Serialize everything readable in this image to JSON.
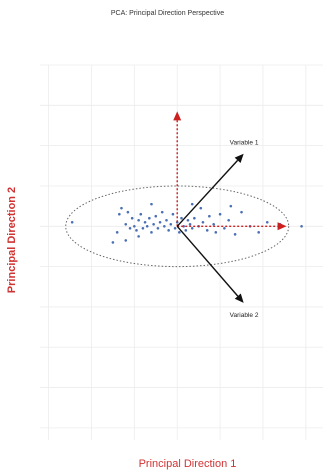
{
  "chart_data": {
    "type": "scatter",
    "title": "PCA: Principal Direction Perspective",
    "xlabel": "Principal Direction 1",
    "ylabel": "Principal Direction 2",
    "xlim": [
      -3.2,
      3.4
    ],
    "ylim": [
      -5.3,
      4.0
    ],
    "grid": true,
    "points": [
      {
        "x": -2.45,
        "y": 0.1
      },
      {
        "x": -1.5,
        "y": -0.4
      },
      {
        "x": -1.4,
        "y": -0.15
      },
      {
        "x": -1.35,
        "y": 0.3
      },
      {
        "x": -1.3,
        "y": 0.45
      },
      {
        "x": -1.2,
        "y": 0.05
      },
      {
        "x": -1.15,
        "y": 0.35
      },
      {
        "x": -1.1,
        "y": -0.05
      },
      {
        "x": -1.05,
        "y": 0.2
      },
      {
        "x": -1.0,
        "y": 0.0
      },
      {
        "x": -0.95,
        "y": -0.1
      },
      {
        "x": -0.9,
        "y": 0.15
      },
      {
        "x": -0.85,
        "y": 0.3
      },
      {
        "x": -0.8,
        "y": -0.05
      },
      {
        "x": -0.75,
        "y": 0.1
      },
      {
        "x": -0.7,
        "y": 0.0
      },
      {
        "x": -0.65,
        "y": 0.2
      },
      {
        "x": -0.6,
        "y": -0.15
      },
      {
        "x": -0.55,
        "y": 0.05
      },
      {
        "x": -0.5,
        "y": 0.25
      },
      {
        "x": -0.45,
        "y": -0.05
      },
      {
        "x": -0.4,
        "y": 0.1
      },
      {
        "x": -0.35,
        "y": 0.35
      },
      {
        "x": -0.3,
        "y": 0.0
      },
      {
        "x": -0.25,
        "y": 0.15
      },
      {
        "x": -0.2,
        "y": -0.1
      },
      {
        "x": -0.15,
        "y": 0.05
      },
      {
        "x": -0.1,
        "y": 0.3
      },
      {
        "x": -0.05,
        "y": -0.05
      },
      {
        "x": 0.0,
        "y": 0.1
      },
      {
        "x": 0.05,
        "y": -0.15
      },
      {
        "x": 0.1,
        "y": 0.2
      },
      {
        "x": 0.15,
        "y": 0.0
      },
      {
        "x": 0.2,
        "y": -0.1
      },
      {
        "x": 0.25,
        "y": 0.15
      },
      {
        "x": 0.3,
        "y": 0.05
      },
      {
        "x": 0.35,
        "y": -0.05
      },
      {
        "x": 0.4,
        "y": 0.2
      },
      {
        "x": 0.5,
        "y": 0.0
      },
      {
        "x": 0.55,
        "y": 0.45
      },
      {
        "x": 0.6,
        "y": 0.1
      },
      {
        "x": 0.7,
        "y": -0.1
      },
      {
        "x": 0.75,
        "y": 0.25
      },
      {
        "x": 0.85,
        "y": 0.05
      },
      {
        "x": 0.9,
        "y": -0.15
      },
      {
        "x": 1.0,
        "y": 0.3
      },
      {
        "x": 1.1,
        "y": -0.05
      },
      {
        "x": 1.2,
        "y": 0.15
      },
      {
        "x": 1.35,
        "y": -0.2
      },
      {
        "x": 1.5,
        "y": 0.35
      },
      {
        "x": 1.7,
        "y": 0.0
      },
      {
        "x": 1.9,
        "y": -0.15
      },
      {
        "x": 2.1,
        "y": 0.1
      },
      {
        "x": 2.4,
        "y": 0.05
      },
      {
        "x": 2.9,
        "y": 0.0
      },
      {
        "x": -1.2,
        "y": -0.35
      },
      {
        "x": -0.6,
        "y": 0.55
      },
      {
        "x": 0.35,
        "y": 0.55
      },
      {
        "x": 1.25,
        "y": 0.5
      },
      {
        "x": -0.9,
        "y": -0.25
      }
    ],
    "ellipse": {
      "center": [
        0.0,
        0.0
      ],
      "rx": 2.6,
      "ry": 1.0
    },
    "principal_directions": [
      {
        "dx": 2.55,
        "dy": 0.0
      },
      {
        "dx": 0.0,
        "dy": 2.85
      }
    ],
    "variables": [
      {
        "name": "Variable 1",
        "dx": 1.55,
        "dy": 1.8
      },
      {
        "name": "Variable 2",
        "dx": 1.55,
        "dy": -1.9
      }
    ],
    "colors": {
      "points": "#4a6fb5",
      "principal": "#cc1f1f",
      "variable": "#111111",
      "ellipse": "#666666",
      "grid": "#ececec"
    }
  }
}
